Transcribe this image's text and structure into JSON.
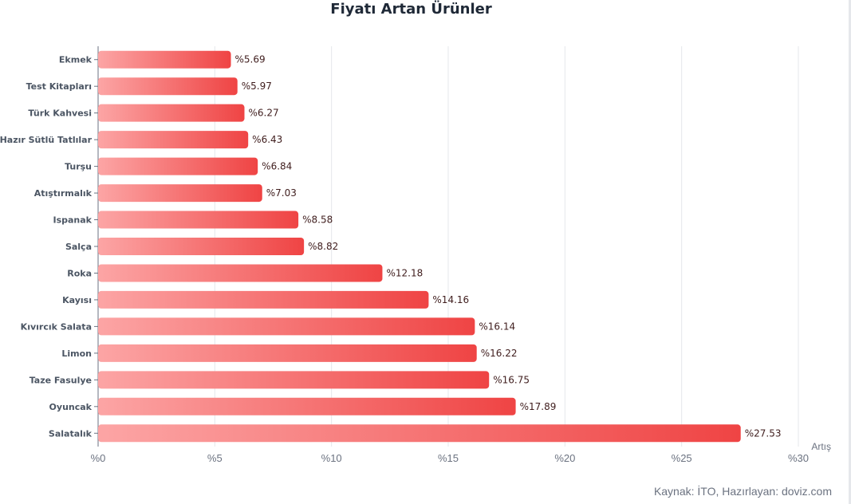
{
  "chart_data": {
    "type": "bar",
    "orientation": "horizontal",
    "title": "Fiyatı Artan Ürünler",
    "xlabel": "Artış",
    "ylabel": "",
    "value_prefix": "%",
    "xlim": [
      0,
      30
    ],
    "x_ticks": [
      0,
      5,
      10,
      15,
      20,
      25,
      30
    ],
    "grid": "vertical",
    "categories": [
      "Ekmek",
      "Test Kitapları",
      "Türk Kahvesi",
      "Hazır Sütlü Tatlılar",
      "Turşu",
      "Atıştırmalık",
      "Ispanak",
      "Salça",
      "Roka",
      "Kayısı",
      "Kıvırcık Salata",
      "Limon",
      "Taze Fasulye",
      "Oyuncak",
      "Salatalık"
    ],
    "values": [
      5.69,
      5.97,
      6.27,
      6.43,
      6.84,
      7.03,
      8.58,
      8.82,
      12.18,
      14.16,
      16.14,
      16.22,
      16.75,
      17.89,
      27.53
    ],
    "colors": {
      "bar_start": "#fca5a5",
      "bar_end": "#ef4444",
      "grid": "#e5e7eb",
      "axis": "#6b7280",
      "label": "#4b5563",
      "value_label": "#3f1d1d"
    }
  },
  "footer": {
    "source": "Kaynak: İTO, Hazırlayan: doviz.com"
  }
}
